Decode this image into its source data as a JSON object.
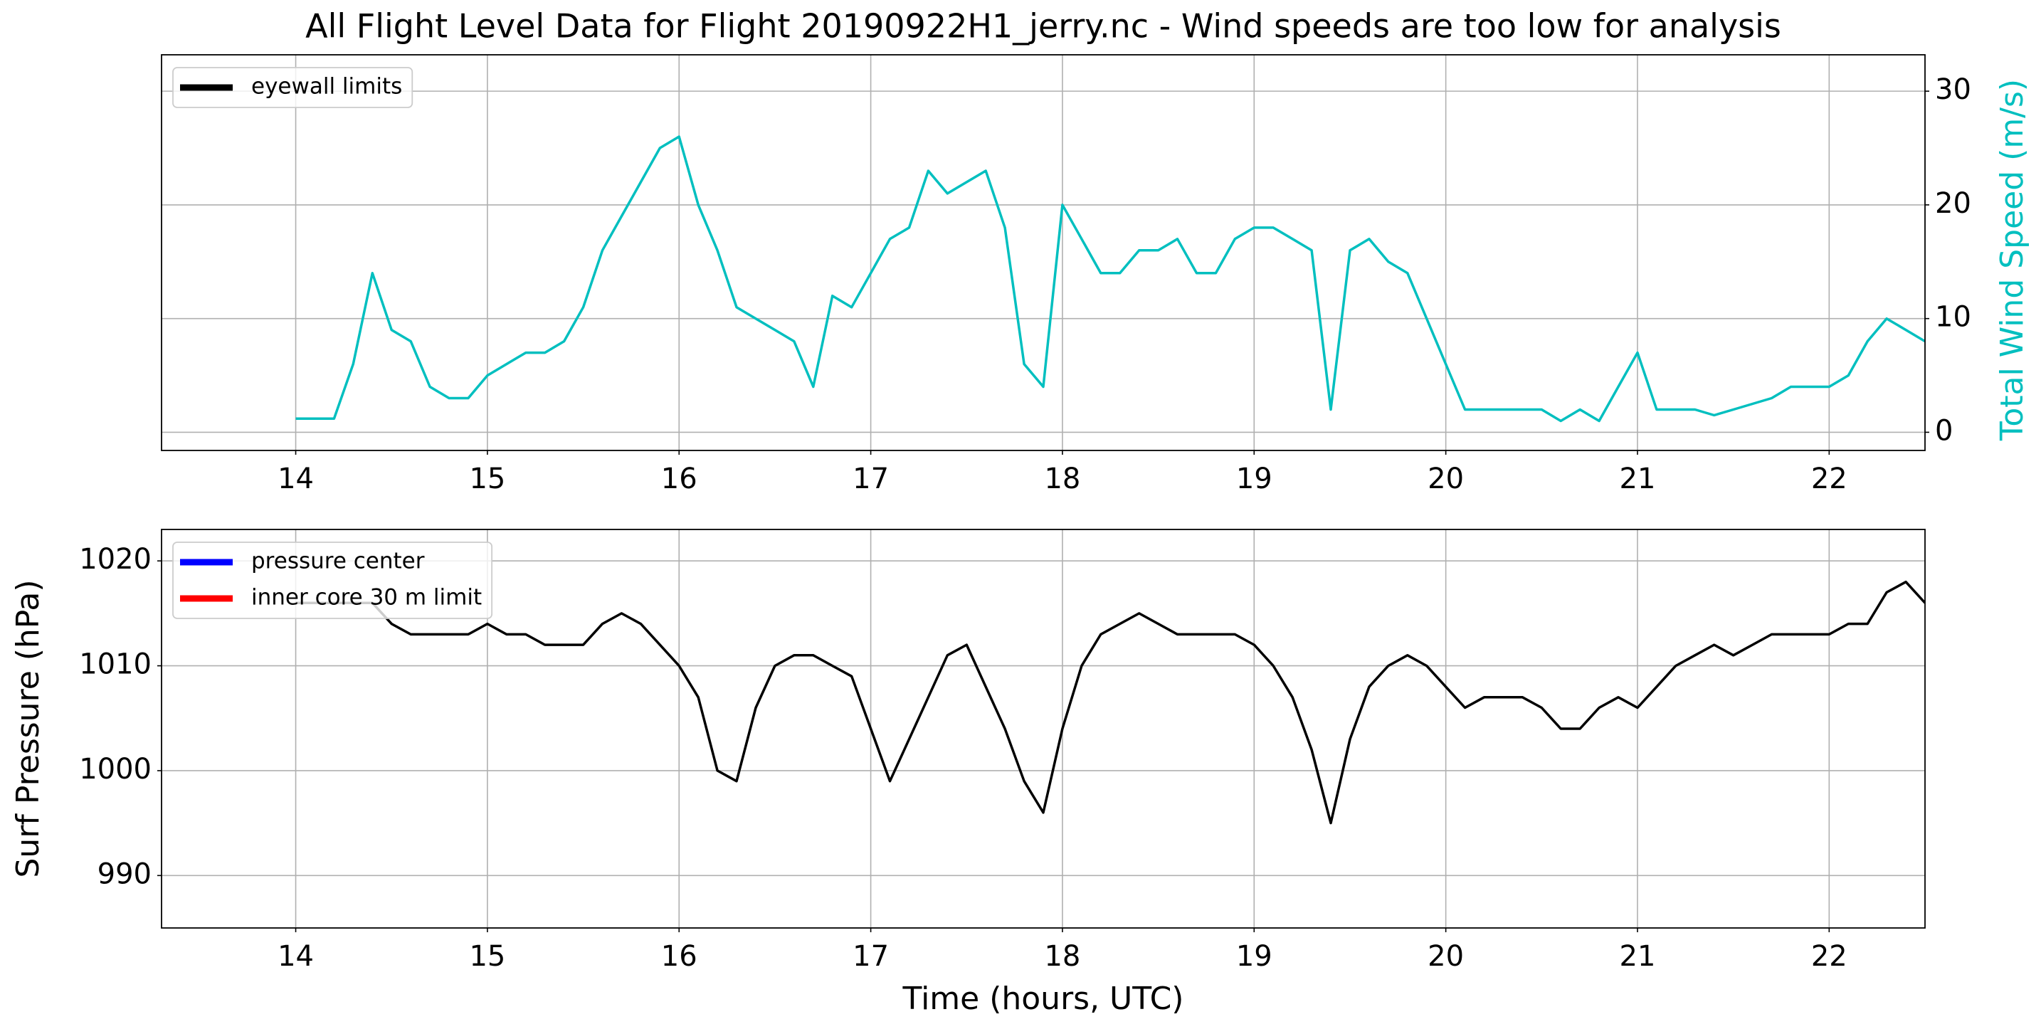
{
  "chart_data": [
    {
      "type": "line",
      "title": "All Flight Level Data for Flight 20190922H1_jerry.nc - Wind speeds are too low for analysis",
      "y2label": "Total Wind Speed (m/s)",
      "x": [
        14.0,
        14.1,
        14.2,
        14.3,
        14.4,
        14.5,
        14.6,
        14.7,
        14.8,
        14.9,
        15.0,
        15.1,
        15.2,
        15.3,
        15.4,
        15.5,
        15.6,
        15.7,
        15.8,
        15.9,
        16.0,
        16.1,
        16.2,
        16.3,
        16.4,
        16.5,
        16.6,
        16.7,
        16.8,
        16.9,
        17.0,
        17.1,
        17.2,
        17.3,
        17.4,
        17.5,
        17.6,
        17.7,
        17.8,
        17.9,
        18.0,
        18.1,
        18.2,
        18.3,
        18.4,
        18.5,
        18.6,
        18.7,
        18.8,
        18.9,
        19.0,
        19.1,
        19.2,
        19.3,
        19.4,
        19.5,
        19.6,
        19.7,
        19.8,
        19.9,
        20.0,
        20.1,
        20.2,
        20.3,
        20.4,
        20.5,
        20.6,
        20.7,
        20.8,
        20.9,
        21.0,
        21.1,
        21.2,
        21.3,
        21.4,
        21.5,
        21.6,
        21.7,
        21.8,
        21.9,
        22.0,
        22.1,
        22.2,
        22.3,
        22.4,
        22.5
      ],
      "series": [
        {
          "name": "Total Wind Speed",
          "color": "#00bfbf",
          "axis": "y2",
          "values": [
            1.2,
            1.2,
            1.2,
            6,
            14,
            9,
            8,
            4,
            3,
            3,
            5,
            6,
            7,
            7,
            8,
            11,
            16,
            19,
            22,
            25,
            26,
            20,
            16,
            11,
            10,
            9,
            8,
            4,
            12,
            11,
            14,
            17,
            18,
            23,
            21,
            22,
            23,
            18,
            6,
            4,
            20,
            17,
            14,
            14,
            16,
            16,
            17,
            14,
            14,
            17,
            18,
            18,
            17,
            16,
            2,
            16,
            17,
            15,
            14,
            10,
            6,
            2,
            2,
            2,
            2,
            2,
            1,
            2,
            1,
            4,
            7,
            2,
            2,
            2,
            1.5,
            2,
            2.5,
            3,
            4,
            4,
            4,
            5,
            8,
            10,
            9,
            8
          ]
        }
      ],
      "xlim": [
        13.3,
        22.5
      ],
      "xticks": [
        14,
        15,
        16,
        17,
        18,
        19,
        20,
        21,
        22
      ],
      "y2lim": [
        -1.6,
        33.2
      ],
      "y2ticks": [
        0,
        10,
        20,
        30
      ],
      "grid": true,
      "legend": {
        "loc": "upper left",
        "entries": [
          {
            "name": "eyewall limits",
            "color": "#000000"
          }
        ]
      }
    },
    {
      "type": "line",
      "xlabel": "Time (hours, UTC)",
      "ylabel": "Surf Pressure (hPa)",
      "x": [
        14.0,
        14.1,
        14.2,
        14.3,
        14.4,
        14.5,
        14.6,
        14.7,
        14.8,
        14.9,
        15.0,
        15.1,
        15.2,
        15.3,
        15.4,
        15.5,
        15.6,
        15.7,
        15.8,
        15.9,
        16.0,
        16.1,
        16.2,
        16.3,
        16.4,
        16.5,
        16.6,
        16.7,
        16.8,
        16.9,
        17.0,
        17.1,
        17.2,
        17.3,
        17.4,
        17.5,
        17.6,
        17.7,
        17.8,
        17.9,
        18.0,
        18.1,
        18.2,
        18.3,
        18.4,
        18.5,
        18.6,
        18.7,
        18.8,
        18.9,
        19.0,
        19.1,
        19.2,
        19.3,
        19.4,
        19.5,
        19.6,
        19.7,
        19.8,
        19.9,
        20.0,
        20.1,
        20.2,
        20.3,
        20.4,
        20.5,
        20.6,
        20.7,
        20.8,
        20.9,
        21.0,
        21.1,
        21.2,
        21.3,
        21.4,
        21.5,
        21.6,
        21.7,
        21.8,
        21.9,
        22.0,
        22.1,
        22.2,
        22.3,
        22.4,
        22.5
      ],
      "series": [
        {
          "name": "Surf Pressure",
          "color": "#000000",
          "values": [
            1016,
            1016,
            1016,
            1016,
            1016,
            1014,
            1013,
            1013,
            1013,
            1013,
            1014,
            1013,
            1013,
            1012,
            1012,
            1012,
            1014,
            1015,
            1014,
            1012,
            1010,
            1007,
            1000,
            999,
            1006,
            1010,
            1011,
            1011,
            1010,
            1009,
            1004,
            999,
            1003,
            1007,
            1011,
            1012,
            1008,
            1004,
            999,
            996,
            1004,
            1010,
            1013,
            1014,
            1015,
            1014,
            1013,
            1013,
            1013,
            1013,
            1012,
            1010,
            1007,
            1002,
            995,
            1003,
            1008,
            1010,
            1011,
            1010,
            1008,
            1006,
            1007,
            1007,
            1007,
            1006,
            1004,
            1004,
            1006,
            1007,
            1006,
            1008,
            1010,
            1011,
            1012,
            1011,
            1012,
            1013,
            1013,
            1013,
            1013,
            1014,
            1014,
            1017,
            1018,
            1016
          ]
        }
      ],
      "xlim": [
        13.3,
        22.5
      ],
      "xticks": [
        14,
        15,
        16,
        17,
        18,
        19,
        20,
        21,
        22
      ],
      "ylim": [
        985,
        1023
      ],
      "yticks": [
        990,
        1000,
        1010,
        1020
      ],
      "grid": true,
      "legend": {
        "loc": "upper left",
        "entries": [
          {
            "name": "pressure center",
            "color": "#0000ff"
          },
          {
            "name": "inner core 30 m limit",
            "color": "#ff0000"
          }
        ]
      }
    }
  ]
}
